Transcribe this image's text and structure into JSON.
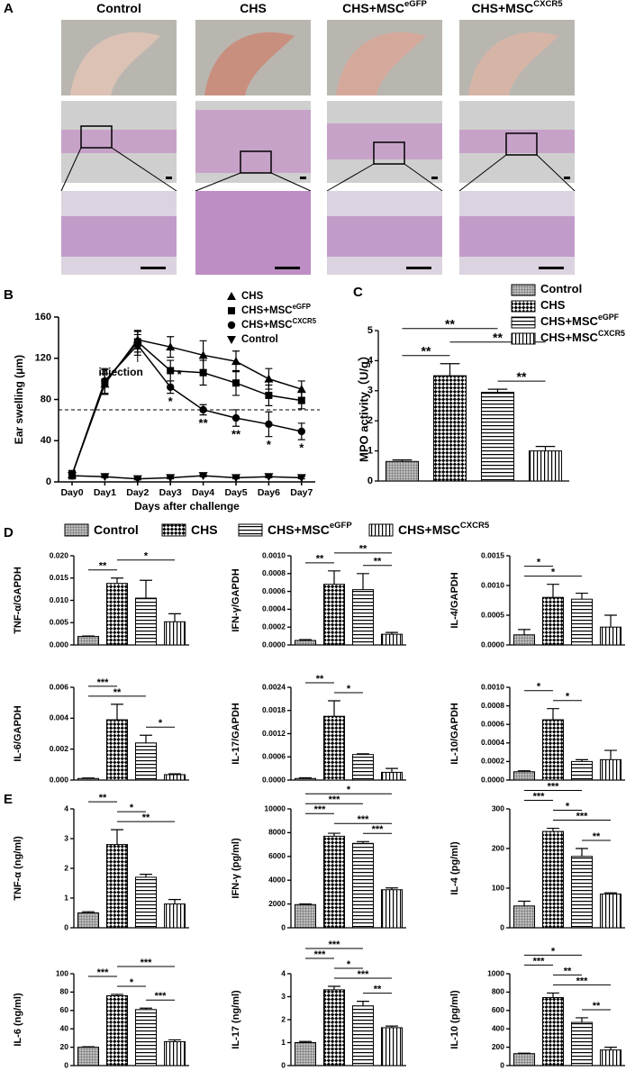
{
  "chart_data": [
    {
      "type": "image-panel",
      "panel": "A",
      "labels": [
        {
          "name": "Control"
        },
        {
          "name": "CHS"
        },
        {
          "name": "CHS+MSC",
          "sup": "eGFP"
        },
        {
          "name": "CHS+MSC",
          "sup": "CXCR5"
        }
      ]
    },
    {
      "type": "line",
      "panel": "B",
      "xlabel": "Days after challenge",
      "ylabel": "Ear swelling (μm)",
      "categories": [
        "Day0",
        "Day1",
        "Day2",
        "Day3",
        "Day4",
        "Day5",
        "Day6",
        "Day7"
      ],
      "ylim": [
        0,
        160
      ],
      "yticks": [
        0,
        40,
        80,
        120,
        160
      ],
      "hline": 70,
      "annotation": {
        "text": "injection",
        "category": 2
      },
      "series": [
        {
          "name": "CHS",
          "marker": "triangle-up",
          "color": "#000000",
          "values": [
            7,
            95,
            138,
            131,
            123,
            117,
            100,
            90
          ],
          "errors": [
            4,
            10,
            9,
            10,
            14,
            10,
            10,
            8
          ],
          "significance": [
            null,
            null,
            null,
            null,
            null,
            null,
            null,
            null
          ]
        },
        {
          "name": "CHS+MSC",
          "sup": "eGFP",
          "marker": "square",
          "color": "#000000",
          "values": [
            7,
            97,
            136,
            108,
            106,
            96,
            84,
            79
          ],
          "errors": [
            4,
            12,
            10,
            10,
            12,
            12,
            10,
            8
          ],
          "significance": [
            null,
            null,
            null,
            "*",
            null,
            null,
            null,
            null
          ]
        },
        {
          "name": "CHS+MSC",
          "sup": "CXCR5",
          "marker": "circle",
          "color": "#000000",
          "values": [
            7,
            98,
            133,
            92,
            70,
            62,
            56,
            49
          ],
          "errors": [
            4,
            12,
            10,
            6,
            5,
            8,
            12,
            8
          ],
          "significance": [
            null,
            null,
            null,
            "*",
            "**",
            "**",
            "*",
            "*"
          ]
        },
        {
          "name": "Control",
          "marker": "triangle-down",
          "color": "#000000",
          "values": [
            6,
            5,
            3,
            4,
            6,
            4,
            5,
            4
          ],
          "errors": [
            1,
            1,
            1,
            1,
            1,
            1,
            1,
            1
          ],
          "significance": [
            null,
            null,
            null,
            null,
            null,
            null,
            null,
            null
          ]
        }
      ]
    },
    {
      "type": "bar",
      "panel": "C",
      "ylabel": "MPO activity（U/g）",
      "ylim": [
        0,
        5
      ],
      "yticks": [
        0,
        1,
        2,
        3,
        4,
        5
      ],
      "legend": [
        {
          "name": "Control"
        },
        {
          "name": "CHS"
        },
        {
          "name": "CHS+MSC",
          "sup": "eGPF"
        },
        {
          "name": "CHS+MSC",
          "sup": "CXCR5"
        }
      ],
      "values": [
        0.65,
        3.5,
        2.95,
        1.0
      ],
      "errors": [
        0.05,
        0.4,
        0.1,
        0.15
      ],
      "significance": [
        {
          "groups": [
            0,
            1
          ],
          "label": "**"
        },
        {
          "groups": [
            2,
            3
          ],
          "label": "**"
        },
        {
          "groups": [
            1,
            3
          ],
          "label": "**"
        },
        {
          "groups": [
            0,
            2
          ],
          "label": "**"
        }
      ]
    },
    {
      "type": "bar",
      "panel": "D",
      "ylabel": "TNF-α/GAPDH",
      "ylim": [
        0,
        0.02
      ],
      "legend": [
        {
          "name": "Control"
        },
        {
          "name": "CHS"
        },
        {
          "name": "CHS+MSC",
          "sup": "eGFP"
        },
        {
          "name": "CHS+MSC",
          "sup": "CXCR5"
        }
      ],
      "yticks": [
        {
          "value": 0,
          "label": "0.000"
        },
        {
          "value": 0.005,
          "label": "0.005"
        },
        {
          "value": 0.01,
          "label": "0.010"
        },
        {
          "value": 0.015,
          "label": "0.015"
        },
        {
          "value": 0.02,
          "label": "0.020"
        }
      ],
      "values": [
        0.0019,
        0.0138,
        0.0105,
        0.0052
      ],
      "errors": [
        0.0001,
        0.0012,
        0.004,
        0.0018
      ],
      "significance": [
        {
          "groups": [
            0,
            1
          ],
          "label": "**"
        },
        {
          "groups": [
            1,
            3
          ],
          "label": "*"
        }
      ]
    },
    {
      "type": "bar",
      "ylabel": "IFN-γ/GAPDH",
      "ylim": [
        0,
        0.001
      ],
      "yticks": [
        {
          "value": 0,
          "label": "0.0000"
        },
        {
          "value": 0.0002,
          "label": "0.0002"
        },
        {
          "value": 0.0004,
          "label": "0.0004"
        },
        {
          "value": 0.0006,
          "label": "0.0006"
        },
        {
          "value": 0.0008,
          "label": "0.0008"
        },
        {
          "value": 0.001,
          "label": "0.0010"
        }
      ],
      "values": [
        5e-05,
        0.00068,
        0.00062,
        0.00012
      ],
      "errors": [
        1e-05,
        0.00015,
        0.00018,
        2e-05
      ],
      "significance": [
        {
          "groups": [
            0,
            1
          ],
          "label": "**"
        },
        {
          "groups": [
            2,
            3
          ],
          "label": "**"
        },
        {
          "groups": [
            1,
            3
          ],
          "label": "**"
        }
      ]
    },
    {
      "type": "bar",
      "ylabel": "IL-4/GAPDH",
      "ylim": [
        0,
        0.0015
      ],
      "yticks": [
        {
          "value": 0,
          "label": "0.0000"
        },
        {
          "value": 0.0005,
          "label": "0.0005"
        },
        {
          "value": 0.001,
          "label": "0.0010"
        },
        {
          "value": 0.0015,
          "label": "0.0015"
        }
      ],
      "values": [
        0.00017,
        0.0008,
        0.00077,
        0.0003
      ],
      "errors": [
        9e-05,
        0.00022,
        0.0001,
        0.0002
      ],
      "significance": [
        {
          "groups": [
            0,
            2
          ],
          "label": "*"
        },
        {
          "groups": [
            0,
            1
          ],
          "label": "*"
        }
      ]
    },
    {
      "type": "bar",
      "ylabel": "IL-6/GAPDH",
      "ylim": [
        0,
        0.006
      ],
      "yticks": [
        {
          "value": 0,
          "label": "0.000"
        },
        {
          "value": 0.002,
          "label": "0.002"
        },
        {
          "value": 0.004,
          "label": "0.004"
        },
        {
          "value": 0.006,
          "label": "0.006"
        }
      ],
      "values": [
        0.0001,
        0.0039,
        0.0024,
        0.00035
      ],
      "errors": [
        3e-05,
        0.001,
        0.0005,
        5e-05
      ],
      "significance": [
        {
          "groups": [
            2,
            3
          ],
          "label": "*"
        },
        {
          "groups": [
            0,
            2
          ],
          "label": "**"
        },
        {
          "groups": [
            0,
            1
          ],
          "label": "***"
        }
      ]
    },
    {
      "type": "bar",
      "ylabel": "IL-17/GAPDH",
      "ylim": [
        0,
        0.0024
      ],
      "yticks": [
        {
          "value": 0,
          "label": "0.0000"
        },
        {
          "value": 0.0006,
          "label": "0.0006"
        },
        {
          "value": 0.0012,
          "label": "0.0012"
        },
        {
          "value": 0.0018,
          "label": "0.0018"
        },
        {
          "value": 0.0024,
          "label": "0.0024"
        }
      ],
      "values": [
        4e-05,
        0.00165,
        0.00066,
        0.0002
      ],
      "errors": [
        2e-05,
        0.0004,
        2e-05,
        0.0001
      ],
      "significance": [
        {
          "groups": [
            1,
            2
          ],
          "label": "*"
        },
        {
          "groups": [
            0,
            1
          ],
          "label": "**"
        }
      ]
    },
    {
      "type": "bar",
      "ylabel": "IL-10/GAPDH",
      "ylim": [
        0,
        0.001
      ],
      "yticks": [
        {
          "value": 0,
          "label": "0.0000"
        },
        {
          "value": 0.0002,
          "label": "0.0002"
        },
        {
          "value": 0.0004,
          "label": "0.0004"
        },
        {
          "value": 0.0006,
          "label": "0.0006"
        },
        {
          "value": 0.0008,
          "label": "0.0008"
        },
        {
          "value": 0.001,
          "label": "0.0010"
        }
      ],
      "values": [
        9e-05,
        0.00065,
        0.0002,
        0.00022
      ],
      "errors": [
        1e-05,
        0.00012,
        2e-05,
        0.0001
      ],
      "significance": [
        {
          "groups": [
            1,
            2
          ],
          "label": "*"
        },
        {
          "groups": [
            0,
            1
          ],
          "label": "*"
        }
      ]
    },
    {
      "type": "bar",
      "panel": "E",
      "ylabel": "TNF-α (ng/ml)",
      "ylim": [
        0,
        4
      ],
      "yticks": [
        0,
        1,
        2,
        3,
        4
      ],
      "values": [
        0.5,
        2.8,
        1.7,
        0.8
      ],
      "errors": [
        0.04,
        0.5,
        0.1,
        0.15
      ],
      "significance": [
        {
          "groups": [
            1,
            3
          ],
          "label": "**"
        },
        {
          "groups": [
            1,
            2
          ],
          "label": "*"
        },
        {
          "groups": [
            0,
            1
          ],
          "label": "**"
        }
      ]
    },
    {
      "type": "bar",
      "ylabel": "IFN-γ (pg/ml)",
      "ylim": [
        0,
        10000
      ],
      "yticks": [
        0,
        2000,
        4000,
        6000,
        8000,
        10000
      ],
      "values": [
        1950,
        7700,
        7100,
        3200
      ],
      "errors": [
        50,
        250,
        150,
        150
      ],
      "significance": [
        {
          "groups": [
            2,
            3
          ],
          "label": "***"
        },
        {
          "groups": [
            1,
            3
          ],
          "label": "***"
        },
        {
          "groups": [
            0,
            1
          ],
          "label": "***"
        },
        {
          "groups": [
            0,
            2
          ],
          "label": "***"
        },
        {
          "groups": [
            0,
            3
          ],
          "label": "*"
        }
      ]
    },
    {
      "type": "bar",
      "ylabel": "IL-4 (pg/ml)",
      "ylim": [
        0,
        300
      ],
      "yticks": [
        0,
        100,
        200,
        300
      ],
      "values": [
        55,
        243,
        180,
        85
      ],
      "errors": [
        12,
        8,
        20,
        3
      ],
      "significance": [
        {
          "groups": [
            2,
            3
          ],
          "label": "**"
        },
        {
          "groups": [
            1,
            3
          ],
          "label": "***"
        },
        {
          "groups": [
            1,
            2
          ],
          "label": "*"
        },
        {
          "groups": [
            0,
            1
          ],
          "label": "***"
        },
        {
          "groups": [
            0,
            2
          ],
          "label": "***"
        }
      ]
    },
    {
      "type": "bar",
      "ylabel": "IL-6 (ng/ml)",
      "ylim": [
        0,
        100
      ],
      "yticks": [
        0,
        20,
        40,
        60,
        80,
        100
      ],
      "values": [
        20,
        76,
        61,
        26
      ],
      "errors": [
        0.5,
        1.5,
        1.5,
        2
      ],
      "significance": [
        {
          "groups": [
            2,
            3
          ],
          "label": "***"
        },
        {
          "groups": [
            1,
            2
          ],
          "label": "*"
        },
        {
          "groups": [
            0,
            1
          ],
          "label": "***"
        },
        {
          "groups": [
            1,
            3
          ],
          "label": "***"
        }
      ]
    },
    {
      "type": "bar",
      "ylabel": "IL-17 (ng/ml)",
      "ylim": [
        0,
        4
      ],
      "yticks": [
        0,
        1,
        2,
        3,
        4
      ],
      "values": [
        1.0,
        3.3,
        2.6,
        1.65
      ],
      "errors": [
        0.05,
        0.15,
        0.2,
        0.07
      ],
      "significance": [
        {
          "groups": [
            2,
            3
          ],
          "label": "**"
        },
        {
          "groups": [
            1,
            3
          ],
          "label": "***"
        },
        {
          "groups": [
            1,
            2
          ],
          "label": "*"
        },
        {
          "groups": [
            0,
            1
          ],
          "label": "***"
        },
        {
          "groups": [
            0,
            2
          ],
          "label": "***"
        }
      ]
    },
    {
      "type": "bar",
      "ylabel": "IL-10 (pg/ml)",
      "ylim": [
        0,
        1000
      ],
      "yticks": [
        0,
        200,
        400,
        600,
        800,
        1000
      ],
      "values": [
        130,
        740,
        470,
        170
      ],
      "errors": [
        5,
        50,
        50,
        30
      ],
      "significance": [
        {
          "groups": [
            2,
            3
          ],
          "label": "**"
        },
        {
          "groups": [
            1,
            3
          ],
          "label": "***"
        },
        {
          "groups": [
            1,
            2
          ],
          "label": "**"
        },
        {
          "groups": [
            0,
            1
          ],
          "label": "***"
        },
        {
          "groups": [
            0,
            2
          ],
          "label": "*"
        }
      ]
    }
  ]
}
